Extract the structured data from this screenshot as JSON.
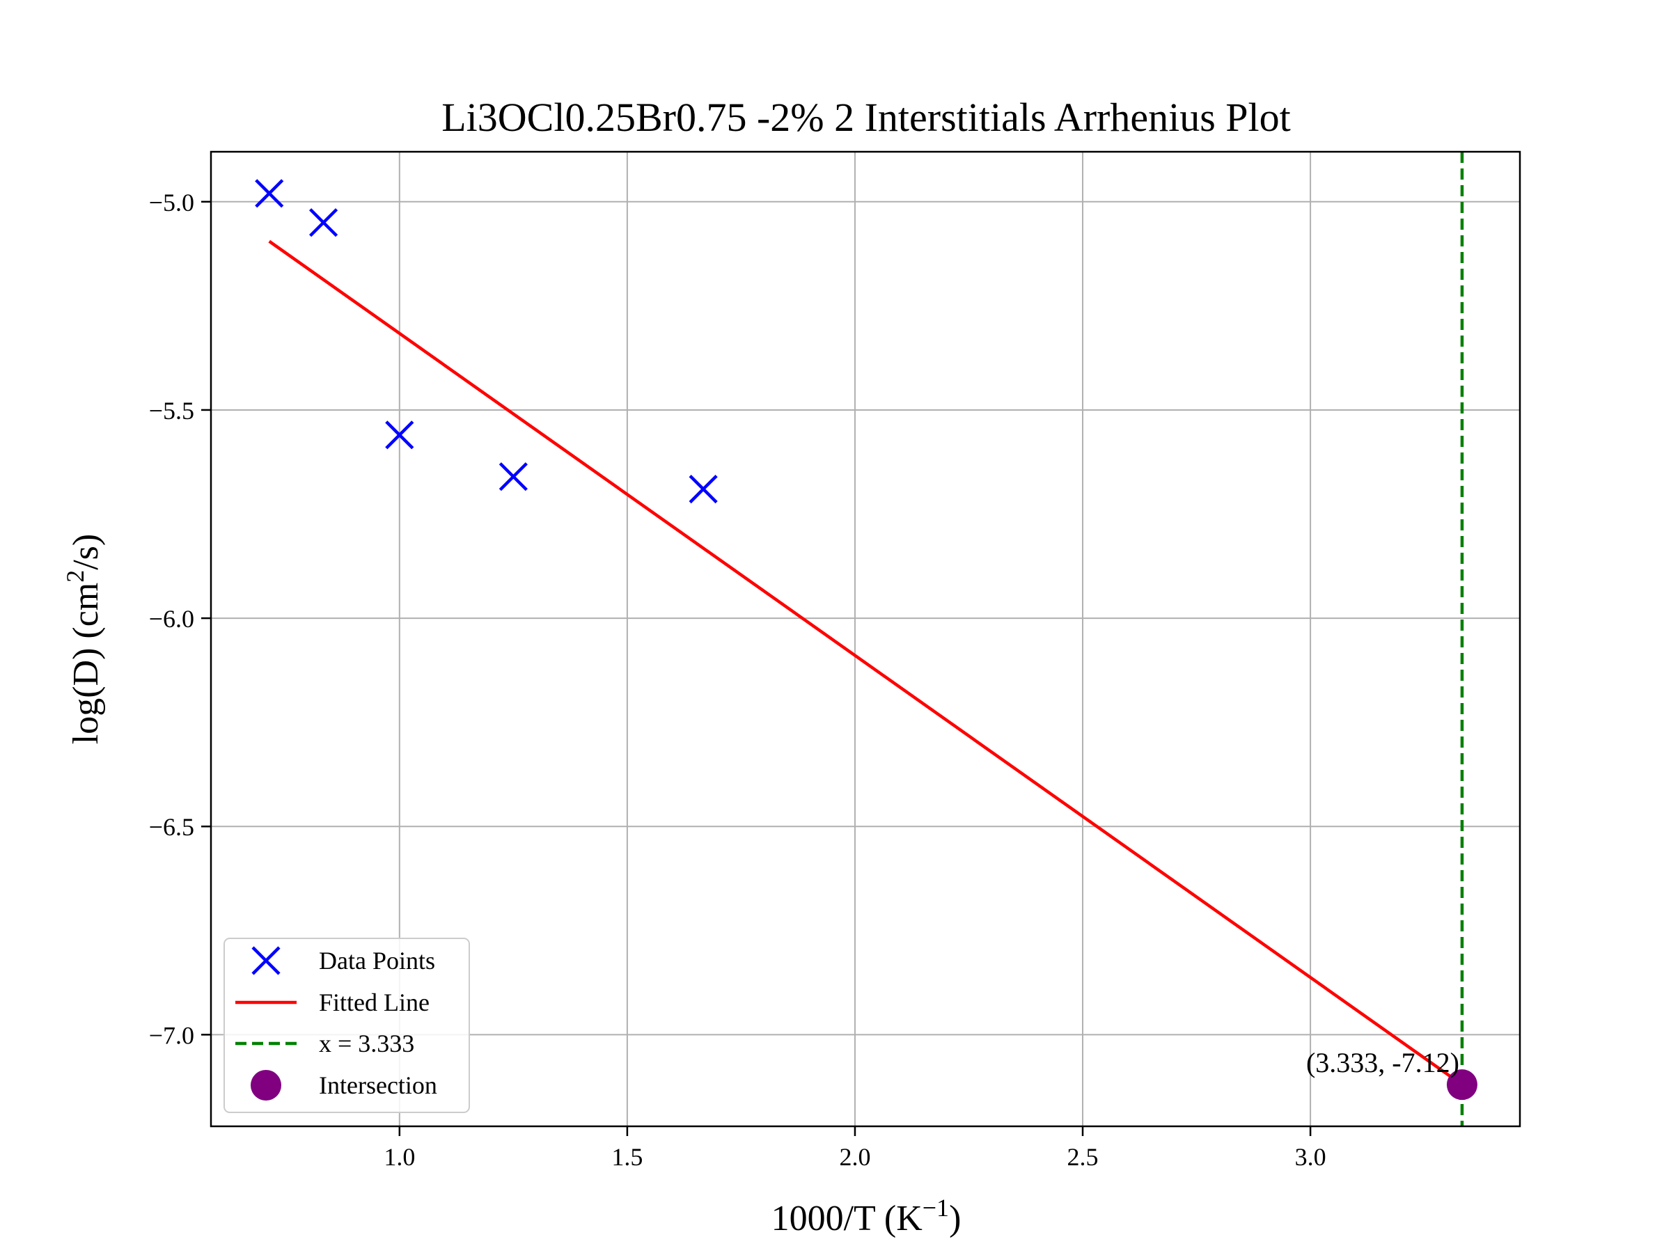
{
  "chart_data": {
    "type": "scatter",
    "title": "Li3OCl0.25Br0.75 -2% 2 Interstitials Arrhenius Plot",
    "xlabel": "1000/T (K",
    "xlabel_sup": "−1",
    "xlabel_end": ")",
    "ylabel": "log(D) (cm",
    "ylabel_sup": "2",
    "ylabel_end": "/s)",
    "xlim": [
      0.586,
      3.46
    ],
    "ylim": [
      -7.22,
      -4.88
    ],
    "xticks": [
      1.0,
      1.5,
      2.0,
      2.5,
      3.0
    ],
    "xtick_labels": [
      "1.0",
      "1.5",
      "2.0",
      "2.5",
      "3.0"
    ],
    "yticks": [
      -5.0,
      -5.5,
      -6.0,
      -6.5,
      -7.0
    ],
    "ytick_labels": [
      "−5.0",
      "−5.5",
      "−6.0",
      "−6.5",
      "−7.0"
    ],
    "grid": true,
    "legend_position": "lower-left",
    "series": [
      {
        "name": "Data Points",
        "kind": "scatter",
        "marker": "x",
        "color": "#0000ff",
        "x": [
          0.714,
          0.833,
          1.0,
          1.25,
          1.667
        ],
        "y": [
          -4.98,
          -5.05,
          -5.56,
          -5.66,
          -5.69
        ]
      },
      {
        "name": "Fitted Line",
        "kind": "line",
        "color": "#ff0000",
        "x": [
          0.714,
          3.333
        ],
        "y": [
          -5.095,
          -7.12
        ]
      },
      {
        "name": "x = 3.333",
        "kind": "vline",
        "style": "dashed",
        "color": "#008000",
        "x": 3.333
      },
      {
        "name": "Intersection",
        "kind": "point",
        "color": "#800080",
        "x": 3.333,
        "y": -7.12
      }
    ],
    "annotation": {
      "text": "(3.333, -7.12)",
      "x": 3.333,
      "y": -7.12
    }
  }
}
